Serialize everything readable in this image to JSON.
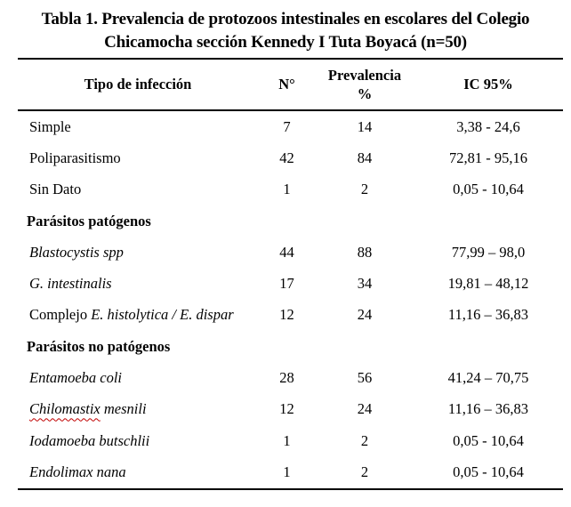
{
  "title": {
    "line1": "Tabla 1. Prevalencia de protozoos intestinales en escolares del Colegio",
    "line2": "Chicamocha sección Kennedy I Tuta Boyacá (n=50)"
  },
  "columns": {
    "tipo": "Tipo de infección",
    "n": "N°",
    "prevalencia": "Prevalencia %",
    "ic": "IC 95%"
  },
  "rows": [
    {
      "name": "Simple",
      "n": "7",
      "prev": "14",
      "ic": "3,38 - 24,6"
    },
    {
      "name": "Poliparasitismo",
      "n": "42",
      "prev": "84",
      "ic": "72,81 - 95,16"
    },
    {
      "name": "Sin Dato",
      "n": "1",
      "prev": "2",
      "ic": "0,05 - 10,64"
    },
    {
      "name": "Parásitos patógenos"
    },
    {
      "name": "Blastocystis spp",
      "n": "44",
      "prev": "88",
      "ic": "77,99 – 98,0"
    },
    {
      "name": "G. intestinalis",
      "n": "17",
      "prev": "34",
      "ic": "19,81 – 48,12"
    },
    {
      "prefix": "Complejo ",
      "name": "E. histolytica / E. dispar",
      "n": "12",
      "prev": "24",
      "ic": "11,16 – 36,83"
    },
    {
      "name": "Parásitos no patógenos"
    },
    {
      "name": "Entamoeba coli",
      "n": "28",
      "prev": "56",
      "ic": "41,24 – 70,75"
    },
    {
      "misspelled": "Chilomastix",
      "rest": " mesnili",
      "n": "12",
      "prev": "24",
      "ic": "11,16 – 36,83"
    },
    {
      "name": "Iodamoeba butschlii",
      "n": "1",
      "prev": "2",
      "ic": "0,05 - 10,64"
    },
    {
      "name": "Endolimax nana",
      "n": "1",
      "prev": "2",
      "ic": "0,05 - 10,64"
    }
  ],
  "sample_size": "n=50",
  "colors": {
    "text": "#000000",
    "rule": "#000000",
    "spellcheck_underline": "#c00000",
    "background": "#ffffff"
  }
}
